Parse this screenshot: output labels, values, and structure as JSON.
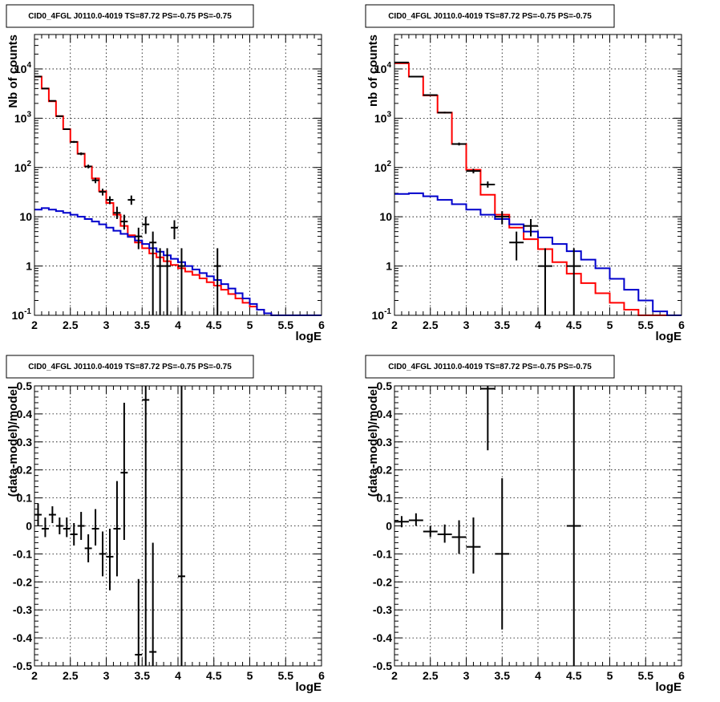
{
  "colors": {
    "model": "#ff0000",
    "background": "#0000cc",
    "data": "#000000"
  },
  "chart_data": [
    {
      "type": "line",
      "title": "CID0_4FGL J0110.0-4019 TS=87.72 PS=-0.75 PS=-0.75",
      "xlabel": "logE",
      "ylabel": "Nb of counts",
      "xlim": [
        2,
        6
      ],
      "ylim": [
        0.1,
        50000
      ],
      "yscale": "log",
      "grid": true,
      "xticks": [
        "2",
        "2.5",
        "3",
        "3.5",
        "4",
        "4.5",
        "5",
        "5.5",
        "6"
      ],
      "yticks": [
        {
          "v": 0.1,
          "l": "10",
          "sup": "-1"
        },
        {
          "v": 1,
          "l": "1",
          "sup": ""
        },
        {
          "v": 10,
          "l": "10",
          "sup": ""
        },
        {
          "v": 100,
          "l": "10",
          "sup": "2"
        },
        {
          "v": 1000,
          "l": "10",
          "sup": "3"
        },
        {
          "v": 10000,
          "l": "10",
          "sup": "4"
        }
      ],
      "series": [
        {
          "role": "model",
          "color": "#ff0000",
          "edges": [
            2.0,
            2.1,
            2.2,
            2.3,
            2.4,
            2.5,
            2.6,
            2.7,
            2.8,
            2.9,
            3.0,
            3.1,
            3.2,
            3.3,
            3.4,
            3.5,
            3.6,
            3.7,
            3.8,
            3.9,
            4.0,
            4.1,
            4.2,
            4.3,
            4.4,
            4.5,
            4.6,
            4.7,
            4.8,
            4.9,
            5.0,
            5.1,
            5.2,
            5.3,
            5.4,
            5.5,
            5.6,
            5.7,
            5.8,
            5.9,
            6.0
          ],
          "values": [
            7000,
            4000,
            2200,
            1100,
            600,
            330,
            190,
            105,
            60,
            33,
            19,
            11,
            6.5,
            4.2,
            3.0,
            2.3,
            1.8,
            1.5,
            1.25,
            1.05,
            0.9,
            0.77,
            0.66,
            0.56,
            0.47,
            0.4,
            0.33,
            0.27,
            0.22,
            0.18,
            0.15,
            0.13,
            0.11,
            0.1,
            0.1,
            0.1,
            0.1,
            0.1,
            0.1,
            0.1
          ]
        },
        {
          "role": "background",
          "color": "#0000cc",
          "edges": [
            2.0,
            2.1,
            2.2,
            2.3,
            2.4,
            2.5,
            2.6,
            2.7,
            2.8,
            2.9,
            3.0,
            3.1,
            3.2,
            3.3,
            3.4,
            3.5,
            3.6,
            3.7,
            3.8,
            3.9,
            4.0,
            4.1,
            4.2,
            4.3,
            4.4,
            4.5,
            4.6,
            4.7,
            4.8,
            4.9,
            5.0,
            5.1,
            5.2,
            5.3,
            5.4,
            5.5,
            5.6,
            5.7,
            5.8,
            5.9,
            6.0
          ],
          "values": [
            14,
            15,
            14,
            13,
            12,
            11,
            10,
            9,
            8,
            7,
            6,
            5.2,
            4.5,
            3.9,
            3.3,
            2.8,
            2.3,
            1.95,
            1.65,
            1.4,
            1.2,
            1.0,
            0.85,
            0.72,
            0.62,
            0.52,
            0.43,
            0.35,
            0.28,
            0.22,
            0.17,
            0.13,
            0.11,
            0.1,
            0.1,
            0.1,
            0.1,
            0.1,
            0.1,
            0.1
          ]
        }
      ],
      "points": [
        {
          "x": 2.05,
          "y": 7000,
          "xerr": 0.05,
          "lo": 6900,
          "hi": 7100
        },
        {
          "x": 2.15,
          "y": 4000,
          "xerr": 0.05,
          "lo": 3930,
          "hi": 4070
        },
        {
          "x": 2.25,
          "y": 2250,
          "xerr": 0.05,
          "lo": 2200,
          "hi": 2300
        },
        {
          "x": 2.35,
          "y": 1100,
          "xerr": 0.05,
          "lo": 1070,
          "hi": 1130
        },
        {
          "x": 2.45,
          "y": 600,
          "xerr": 0.05,
          "lo": 580,
          "hi": 620
        },
        {
          "x": 2.55,
          "y": 330,
          "xerr": 0.05,
          "lo": 315,
          "hi": 345
        },
        {
          "x": 2.65,
          "y": 190,
          "xerr": 0.05,
          "lo": 178,
          "hi": 202
        },
        {
          "x": 2.75,
          "y": 105,
          "xerr": 0.05,
          "lo": 96,
          "hi": 114
        },
        {
          "x": 2.85,
          "y": 55,
          "xerr": 0.05,
          "lo": 48,
          "hi": 62
        },
        {
          "x": 2.95,
          "y": 32,
          "xerr": 0.05,
          "lo": 27,
          "hi": 37
        },
        {
          "x": 3.05,
          "y": 22,
          "xerr": 0.05,
          "lo": 18,
          "hi": 26
        },
        {
          "x": 3.15,
          "y": 12,
          "xerr": 0.05,
          "lo": 9,
          "hi": 16
        },
        {
          "x": 3.25,
          "y": 8,
          "xerr": 0.05,
          "lo": 5.5,
          "hi": 11
        },
        {
          "x": 3.35,
          "y": 22,
          "xerr": 0.05,
          "lo": 17.5,
          "hi": 27
        },
        {
          "x": 3.45,
          "y": 4,
          "xerr": 0.05,
          "lo": 2.2,
          "hi": 6
        },
        {
          "x": 3.55,
          "y": 7,
          "xerr": 0.05,
          "lo": 4.5,
          "hi": 10
        },
        {
          "x": 3.65,
          "y": 3,
          "xerr": 0.05,
          "lo": 0.1,
          "hi": 5
        },
        {
          "x": 3.75,
          "y": 1,
          "xerr": 0.05,
          "lo": 0.1,
          "hi": 2.3
        },
        {
          "x": 3.85,
          "y": 1,
          "xerr": 0.05,
          "lo": 0.1,
          "hi": 2.3
        },
        {
          "x": 3.95,
          "y": 6,
          "xerr": 0.05,
          "lo": 3.5,
          "hi": 8.5
        },
        {
          "x": 4.05,
          "y": 1,
          "xerr": 0.05,
          "lo": 0.1,
          "hi": 2.3
        },
        {
          "x": 4.55,
          "y": 1,
          "xerr": 0.05,
          "lo": 0.1,
          "hi": 2.3
        }
      ]
    },
    {
      "type": "line",
      "title": "CID0_4FGL J0110.0-4019 TS=87.72 PS=-0.75 PS=-0.75",
      "xlabel": "logE",
      "ylabel": "nb of counts",
      "xlim": [
        2,
        6
      ],
      "ylim": [
        0.1,
        50000
      ],
      "yscale": "log",
      "grid": true,
      "xticks": [
        "2",
        "2.5",
        "3",
        "3.5",
        "4",
        "4.5",
        "5",
        "5.5",
        "6"
      ],
      "yticks": [
        {
          "v": 0.1,
          "l": "10",
          "sup": "-1"
        },
        {
          "v": 1,
          "l": "1",
          "sup": ""
        },
        {
          "v": 10,
          "l": "10",
          "sup": ""
        },
        {
          "v": 100,
          "l": "10",
          "sup": "2"
        },
        {
          "v": 1000,
          "l": "10",
          "sup": "3"
        },
        {
          "v": 10000,
          "l": "10",
          "sup": "4"
        }
      ],
      "series": [
        {
          "role": "model",
          "color": "#ff0000",
          "edges": [
            2.0,
            2.2,
            2.4,
            2.6,
            2.8,
            3.0,
            3.2,
            3.4,
            3.6,
            3.8,
            4.0,
            4.2,
            4.4,
            4.6,
            4.8,
            5.0,
            5.2,
            5.4,
            5.6,
            5.8,
            6.0
          ],
          "values": [
            13000,
            7000,
            2900,
            1300,
            300,
            90,
            28,
            11,
            6,
            3.5,
            2.2,
            1.2,
            0.7,
            0.45,
            0.28,
            0.18,
            0.13,
            0.1,
            0.1,
            0.1
          ]
        },
        {
          "role": "background",
          "color": "#0000cc",
          "edges": [
            2.0,
            2.2,
            2.4,
            2.6,
            2.8,
            3.0,
            3.2,
            3.4,
            3.6,
            3.8,
            4.0,
            4.2,
            4.4,
            4.6,
            4.8,
            5.0,
            5.2,
            5.4,
            5.6,
            5.8,
            6.0
          ],
          "values": [
            29,
            30,
            26,
            22,
            18,
            14,
            11,
            9,
            7,
            5,
            3.8,
            2.8,
            2.0,
            1.35,
            0.9,
            0.55,
            0.33,
            0.2,
            0.12,
            0.1
          ]
        }
      ],
      "points": [
        {
          "x": 2.1,
          "y": 13500,
          "xerr": 0.1,
          "lo": 13300,
          "hi": 13700
        },
        {
          "x": 2.3,
          "y": 7000,
          "xerr": 0.1,
          "lo": 6850,
          "hi": 7150
        },
        {
          "x": 2.5,
          "y": 2950,
          "xerr": 0.1,
          "lo": 2850,
          "hi": 3050
        },
        {
          "x": 2.7,
          "y": 1300,
          "xerr": 0.1,
          "lo": 1250,
          "hi": 1350
        },
        {
          "x": 2.9,
          "y": 300,
          "xerr": 0.1,
          "lo": 280,
          "hi": 320
        },
        {
          "x": 3.1,
          "y": 85,
          "xerr": 0.1,
          "lo": 76,
          "hi": 94
        },
        {
          "x": 3.3,
          "y": 45,
          "xerr": 0.1,
          "lo": 39,
          "hi": 52
        },
        {
          "x": 3.5,
          "y": 10,
          "xerr": 0.1,
          "lo": 7,
          "hi": 13
        },
        {
          "x": 3.7,
          "y": 3,
          "xerr": 0.1,
          "lo": 1.3,
          "hi": 5
        },
        {
          "x": 3.9,
          "y": 6.5,
          "xerr": 0.1,
          "lo": 4,
          "hi": 9
        },
        {
          "x": 4.1,
          "y": 1,
          "xerr": 0.1,
          "lo": 0.1,
          "hi": 2.3
        },
        {
          "x": 4.5,
          "y": 1,
          "xerr": 0.1,
          "lo": 0.1,
          "hi": 2.3
        }
      ]
    },
    {
      "type": "scatter",
      "title": "CID0_4FGL J0110.0-4019 TS=87.72 PS=-0.75 PS=-0.75",
      "xlabel": "logE",
      "ylabel": "(data-model)/model",
      "xlim": [
        2,
        6
      ],
      "ylim": [
        -0.5,
        0.5
      ],
      "yscale": "linear",
      "grid": true,
      "xticks": [
        "2",
        "2.5",
        "3",
        "3.5",
        "4",
        "4.5",
        "5",
        "5.5",
        "6"
      ],
      "yticks": [
        {
          "v": -0.5,
          "l": "-0.5",
          "sup": ""
        },
        {
          "v": -0.4,
          "l": "-0.4",
          "sup": ""
        },
        {
          "v": -0.3,
          "l": "-0.3",
          "sup": ""
        },
        {
          "v": -0.2,
          "l": "-0.2",
          "sup": ""
        },
        {
          "v": -0.1,
          "l": "-0.1",
          "sup": ""
        },
        {
          "v": 0,
          "l": "0",
          "sup": ""
        },
        {
          "v": 0.1,
          "l": "0.1",
          "sup": ""
        },
        {
          "v": 0.2,
          "l": "0.2",
          "sup": ""
        },
        {
          "v": 0.3,
          "l": "0.3",
          "sup": ""
        },
        {
          "v": 0.4,
          "l": "0.4",
          "sup": ""
        },
        {
          "v": 0.5,
          "l": "0.5",
          "sup": ""
        }
      ],
      "series": [],
      "points": [
        {
          "x": 2.05,
          "y": 0.04,
          "xerr": 0.05,
          "lo": 0.0,
          "hi": 0.08
        },
        {
          "x": 2.15,
          "y": -0.01,
          "xerr": 0.05,
          "lo": -0.04,
          "hi": 0.03
        },
        {
          "x": 2.25,
          "y": 0.04,
          "xerr": 0.05,
          "lo": 0.01,
          "hi": 0.07
        },
        {
          "x": 2.35,
          "y": 0.0,
          "xerr": 0.05,
          "lo": -0.03,
          "hi": 0.03
        },
        {
          "x": 2.45,
          "y": -0.01,
          "xerr": 0.05,
          "lo": -0.04,
          "hi": 0.03
        },
        {
          "x": 2.55,
          "y": -0.03,
          "xerr": 0.05,
          "lo": -0.07,
          "hi": 0.01
        },
        {
          "x": 2.65,
          "y": 0.0,
          "xerr": 0.05,
          "lo": -0.05,
          "hi": 0.05
        },
        {
          "x": 2.75,
          "y": -0.08,
          "xerr": 0.05,
          "lo": -0.13,
          "hi": -0.03
        },
        {
          "x": 2.85,
          "y": -0.01,
          "xerr": 0.05,
          "lo": -0.07,
          "hi": 0.06
        },
        {
          "x": 2.95,
          "y": -0.1,
          "xerr": 0.05,
          "lo": -0.18,
          "hi": -0.02
        },
        {
          "x": 3.05,
          "y": -0.11,
          "xerr": 0.05,
          "lo": -0.23,
          "hi": -0.01
        },
        {
          "x": 3.15,
          "y": -0.01,
          "xerr": 0.05,
          "lo": -0.18,
          "hi": 0.16
        },
        {
          "x": 3.25,
          "y": 0.19,
          "xerr": 0.05,
          "lo": -0.05,
          "hi": 0.44
        },
        {
          "x": 3.45,
          "y": -0.46,
          "xerr": 0.05,
          "lo": -0.5,
          "hi": -0.19
        },
        {
          "x": 3.55,
          "y": 0.45,
          "xerr": 0.05,
          "lo": -0.5,
          "hi": 0.5
        },
        {
          "x": 3.65,
          "y": -0.45,
          "xerr": 0.05,
          "lo": -0.5,
          "hi": -0.06
        },
        {
          "x": 4.05,
          "y": -0.18,
          "xerr": 0.05,
          "lo": -0.5,
          "hi": 0.5
        }
      ]
    },
    {
      "type": "scatter",
      "title": "CID0_4FGL J0110.0-4019 TS=87.72 PS=-0.75 PS=-0.75",
      "xlabel": "logE",
      "ylabel": "(data-model)/model",
      "xlim": [
        2,
        6
      ],
      "ylim": [
        -0.5,
        0.5
      ],
      "yscale": "linear",
      "grid": true,
      "xticks": [
        "2",
        "2.5",
        "3",
        "3.5",
        "4",
        "4.5",
        "5",
        "5.5",
        "6"
      ],
      "yticks": [
        {
          "v": -0.5,
          "l": "-0.5",
          "sup": ""
        },
        {
          "v": -0.4,
          "l": "-0.4",
          "sup": ""
        },
        {
          "v": -0.3,
          "l": "-0.3",
          "sup": ""
        },
        {
          "v": -0.2,
          "l": "-0.2",
          "sup": ""
        },
        {
          "v": -0.1,
          "l": "-0.1",
          "sup": ""
        },
        {
          "v": 0,
          "l": "0",
          "sup": ""
        },
        {
          "v": 0.1,
          "l": "0.1",
          "sup": ""
        },
        {
          "v": 0.2,
          "l": "0.2",
          "sup": ""
        },
        {
          "v": 0.3,
          "l": "0.3",
          "sup": ""
        },
        {
          "v": 0.4,
          "l": "0.4",
          "sup": ""
        },
        {
          "v": 0.5,
          "l": "0.5",
          "sup": ""
        }
      ],
      "series": [],
      "points": [
        {
          "x": 2.1,
          "y": 0.015,
          "xerr": 0.1,
          "lo": -0.005,
          "hi": 0.035
        },
        {
          "x": 2.3,
          "y": 0.02,
          "xerr": 0.1,
          "lo": 0.0,
          "hi": 0.045
        },
        {
          "x": 2.5,
          "y": -0.02,
          "xerr": 0.1,
          "lo": -0.04,
          "hi": 0.0
        },
        {
          "x": 2.7,
          "y": -0.03,
          "xerr": 0.1,
          "lo": -0.06,
          "hi": 0.005
        },
        {
          "x": 2.9,
          "y": -0.04,
          "xerr": 0.1,
          "lo": -0.1,
          "hi": 0.02
        },
        {
          "x": 3.1,
          "y": -0.075,
          "xerr": 0.1,
          "lo": -0.17,
          "hi": 0.03
        },
        {
          "x": 3.3,
          "y": 0.49,
          "xerr": 0.1,
          "lo": 0.27,
          "hi": 0.5
        },
        {
          "x": 3.5,
          "y": -0.1,
          "xerr": 0.1,
          "lo": -0.37,
          "hi": 0.17
        },
        {
          "x": 4.5,
          "y": 0.0,
          "xerr": 0.1,
          "lo": -0.5,
          "hi": 0.5
        }
      ]
    }
  ]
}
